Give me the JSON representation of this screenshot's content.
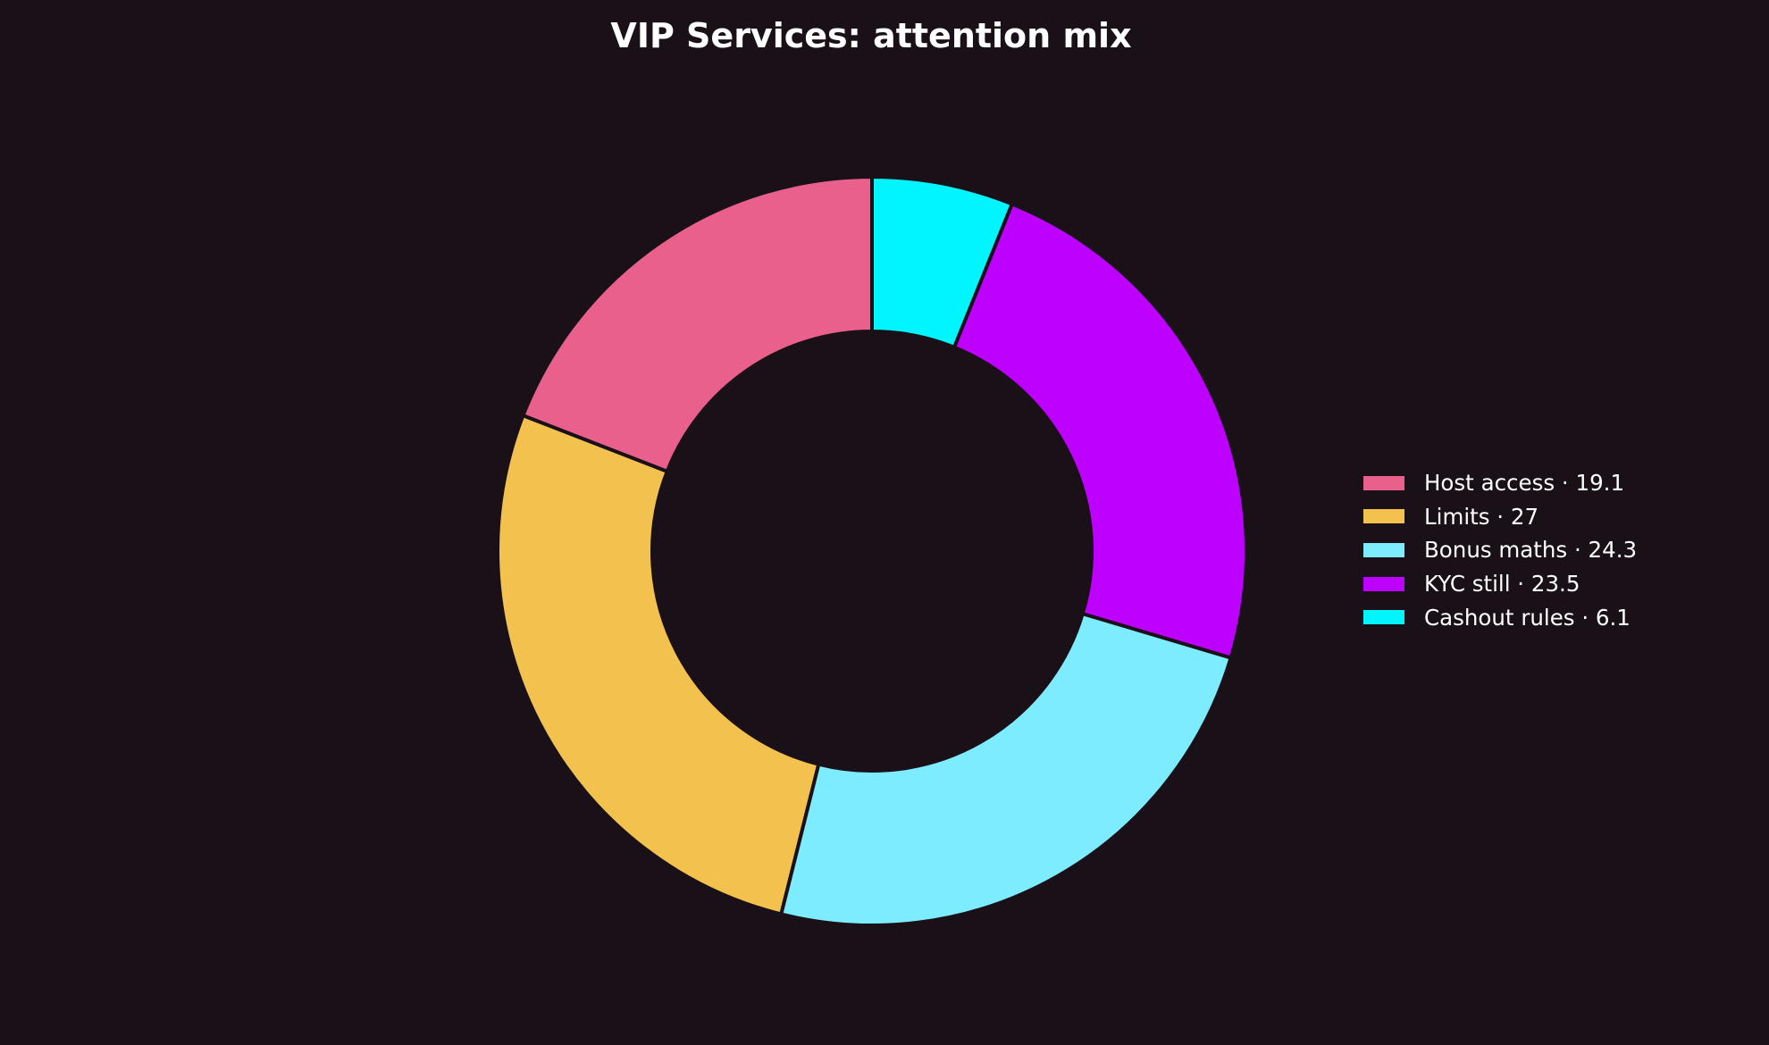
{
  "chart_data": {
    "type": "pie",
    "variant": "donut",
    "title": "VIP Services: attention mix",
    "categories": [
      "Host access",
      "Limits",
      "Bonus maths",
      "KYC still",
      "Cashout rules"
    ],
    "values": [
      19.1,
      27,
      24.3,
      23.5,
      6.1
    ],
    "colors": [
      "#e8608b",
      "#f2c14e",
      "#7eecff",
      "#bd00ff",
      "#00f5ff"
    ],
    "legend_labels": [
      "Host access · 19.1",
      "Limits · 27",
      "Bonus maths · 24.3",
      "KYC still · 23.5",
      "Cashout rules · 6.1"
    ],
    "start_angle": "12 o'clock",
    "direction": "counterclockwise",
    "legend_position": "right"
  }
}
